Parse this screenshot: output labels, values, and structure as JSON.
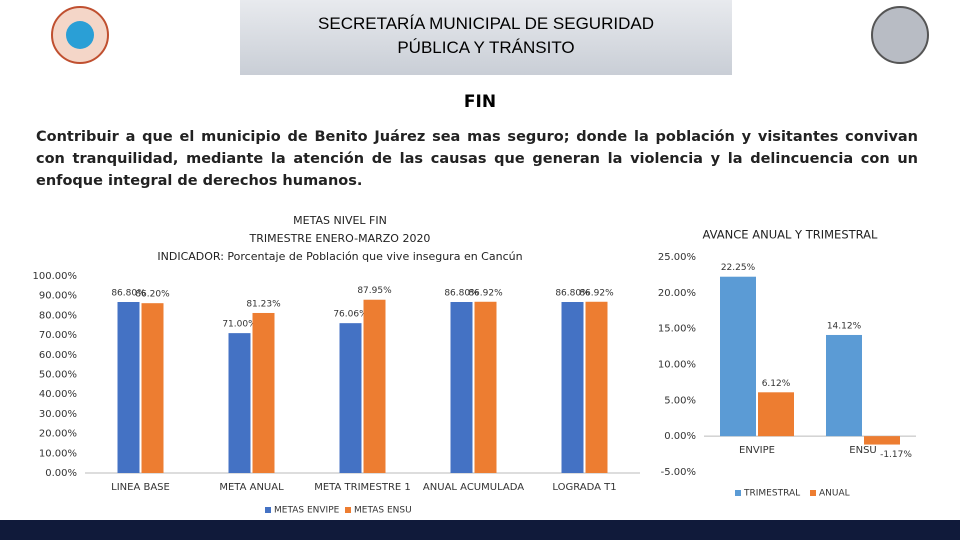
{
  "header": {
    "title": "SECRETARÍA MUNICIPAL DE SEGURIDAD PÚBLICA Y TRÁNSITO"
  },
  "section": {
    "title": "FIN",
    "text": "Contribuir a que el municipio de Benito Juárez sea mas seguro; donde la población y visitantes convivan con tranquilidad, mediante la atención de las causas que generan la violencia y la delincuencia con un enfoque integral de derechos humanos."
  },
  "chart_data": [
    {
      "type": "bar",
      "title": [
        "METAS NIVEL FIN",
        "TRIMESTRE ENERO-MARZO 2020",
        "INDICADOR: Porcentaje de Población que vive insegura en Cancún"
      ],
      "categories": [
        "LINEA BASE",
        "META ANUAL",
        "META TRIMESTRE 1",
        "ANUAL ACUMULADA",
        "LOGRADA T1"
      ],
      "series": [
        {
          "name": "METAS ENVIPE",
          "color": "#4472c4",
          "values": [
            86.8,
            71.0,
            76.06,
            86.8,
            86.8
          ],
          "value_labels": [
            "86.80%",
            "71.00%",
            "76.06%",
            "86.80%",
            "86.80%"
          ]
        },
        {
          "name": "METAS ENSU",
          "color": "#ed7d31",
          "values": [
            86.2,
            81.23,
            87.95,
            86.92,
            86.92
          ],
          "value_labels": [
            "86.20%",
            "81.23%",
            "87.95%",
            "86.92%",
            "86.92%"
          ]
        }
      ],
      "ylim": [
        0,
        100
      ],
      "yticks": [
        {
          "value": 0,
          "label": "0.00%"
        },
        {
          "value": 10,
          "label": "10.00%"
        },
        {
          "value": 20,
          "label": "20.00%"
        },
        {
          "value": 30,
          "label": "30.00%"
        },
        {
          "value": 40,
          "label": "40.00%"
        },
        {
          "value": 50,
          "label": "50.00%"
        },
        {
          "value": 60,
          "label": "60.00%"
        },
        {
          "value": 70,
          "label": "70.00%"
        },
        {
          "value": 80,
          "label": "80.00%"
        },
        {
          "value": 90,
          "label": "90.00%"
        },
        {
          "value": 100,
          "label": "100.00%"
        }
      ]
    },
    {
      "type": "bar",
      "title": [
        "AVANCE ANUAL Y TRIMESTRAL"
      ],
      "categories": [
        "ENVIPE",
        "ENSU"
      ],
      "series": [
        {
          "name": "TRIMESTRAL",
          "color": "#5b9bd5",
          "values": [
            22.25,
            14.12
          ],
          "value_labels": [
            "22.25%",
            "14.12%"
          ]
        },
        {
          "name": "ANUAL",
          "color": "#ed7d31",
          "values": [
            6.12,
            -1.17
          ],
          "value_labels": [
            "6.12%",
            "-1.17%"
          ]
        }
      ],
      "ylim": [
        -5,
        25
      ],
      "yticks": [
        {
          "value": -5,
          "label": "-5.00%"
        },
        {
          "value": 0,
          "label": "0.00%"
        },
        {
          "value": 5,
          "label": "5.00%"
        },
        {
          "value": 10,
          "label": "10.00%"
        },
        {
          "value": 15,
          "label": "15.00%"
        },
        {
          "value": 20,
          "label": "20.00%"
        },
        {
          "value": 25,
          "label": "25.00%"
        }
      ]
    }
  ]
}
